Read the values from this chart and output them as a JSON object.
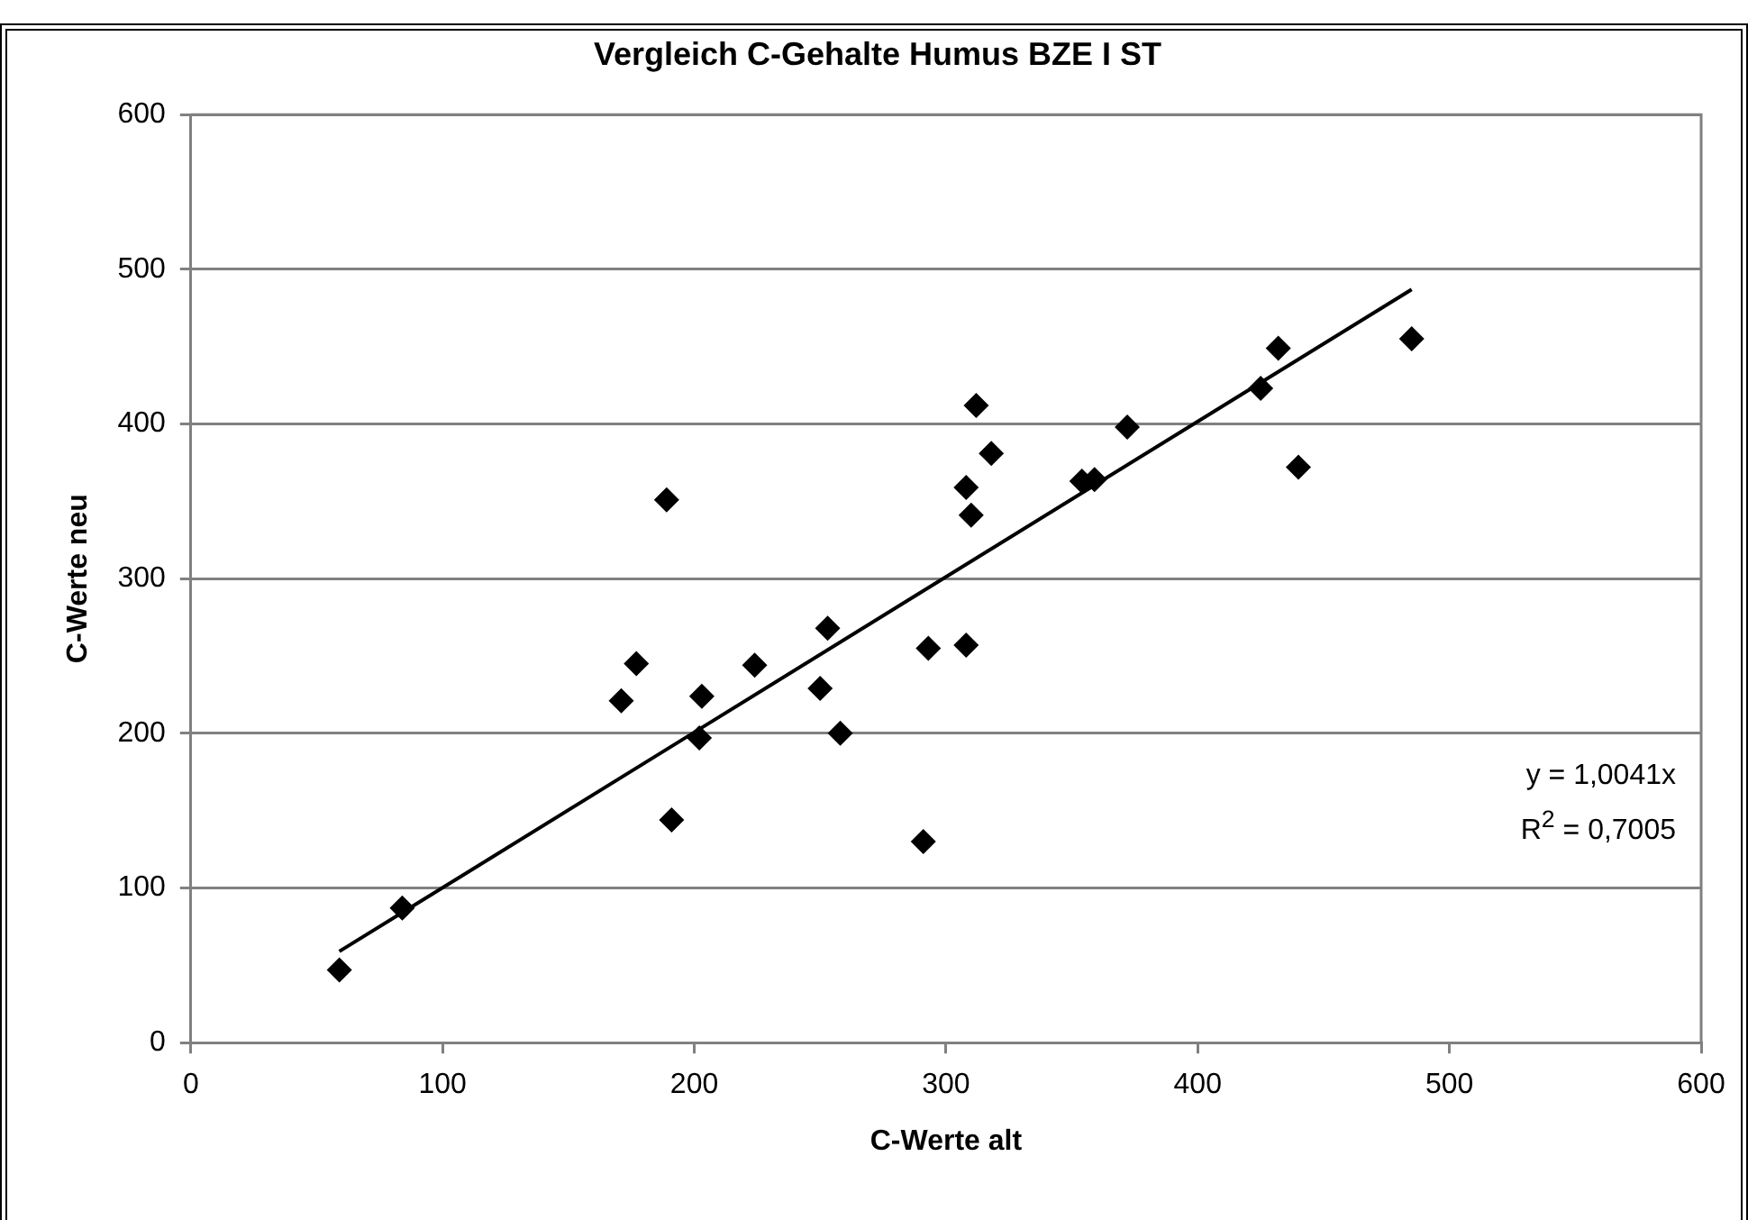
{
  "chart_data": {
    "type": "scatter",
    "title": "Vergleich C-Gehalte Humus BZE I ST",
    "xlabel": "C-Werte alt",
    "ylabel": "C-Werte neu",
    "xlim": [
      0,
      600
    ],
    "xticks": [
      0,
      100,
      200,
      300,
      400,
      500,
      600
    ],
    "ylim": [
      0,
      600
    ],
    "yticks": [
      0,
      100,
      200,
      300,
      400,
      500,
      600
    ],
    "grid": "y",
    "legend": false,
    "marker": "diamond",
    "series": [
      {
        "color": "#000000",
        "x": [
          59,
          84,
          171,
          177,
          189,
          191,
          202,
          203,
          224,
          250,
          253,
          258,
          291,
          293,
          308,
          308,
          310,
          312,
          318,
          354,
          359,
          372,
          425,
          432,
          440,
          485
        ],
        "values": [
          47,
          87,
          221,
          245,
          351,
          144,
          197,
          224,
          244,
          229,
          268,
          200,
          130,
          255,
          257,
          359,
          341,
          412,
          381,
          363,
          364,
          398,
          423,
          449,
          372,
          455
        ]
      },
      {
        "type": "line",
        "color": "#000000",
        "x": [
          59,
          485
        ],
        "values": [
          59,
          487
        ],
        "marker": "none",
        "line_style": "solid"
      }
    ],
    "annotations": [
      "y = 1,0041x",
      "R$^{2}$ = 0,7005"
    ]
  }
}
